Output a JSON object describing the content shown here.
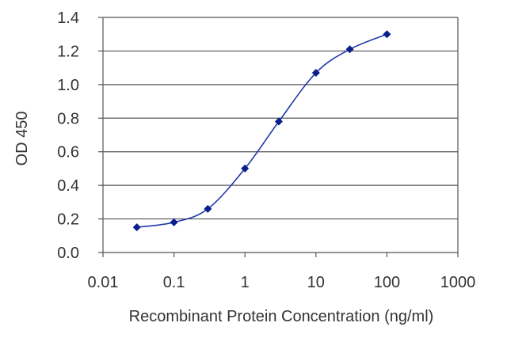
{
  "colors": {
    "series": "#1f3aa8",
    "marker": "#0a1e8c",
    "grid": "#555555",
    "frame": "#555555",
    "text": "#333333"
  },
  "chart_data": {
    "type": "line",
    "xscale": "log",
    "xlim": [
      0.01,
      1000
    ],
    "ylim": [
      0.0,
      1.4
    ],
    "xlabel": "Recombinant Protein Concentration (ng/ml)",
    "ylabel": "OD 450",
    "grid": "horizontal",
    "x_ticks": [
      0.01,
      0.1,
      1,
      10,
      100,
      1000
    ],
    "x_tick_labels": [
      "0.01",
      "0.1",
      "1",
      "10",
      "100",
      "1000"
    ],
    "y_ticks": [
      0.0,
      0.2,
      0.4,
      0.6,
      0.8,
      1.0,
      1.2,
      1.4
    ],
    "y_tick_labels": [
      "0.0",
      "0.2",
      "0.4",
      "0.6",
      "0.8",
      "1.0",
      "1.2",
      "1.4"
    ],
    "series": [
      {
        "x": [
          0.03,
          0.1,
          0.3,
          1,
          3,
          10,
          30,
          100
        ],
        "y": [
          0.15,
          0.18,
          0.26,
          0.5,
          0.78,
          1.07,
          1.21,
          1.3
        ]
      }
    ]
  }
}
